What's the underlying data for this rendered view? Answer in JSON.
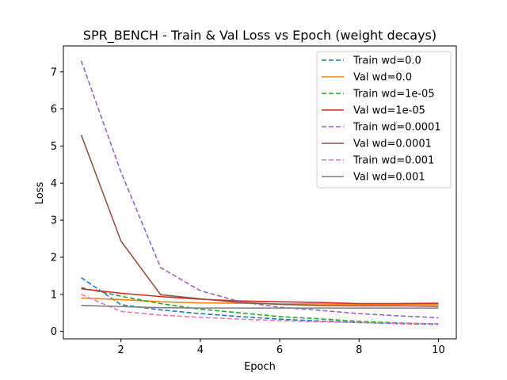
{
  "chart_data": {
    "type": "line",
    "title": "SPR_BENCH - Train & Val Loss vs Epoch (weight decays)",
    "xlabel": "Epoch",
    "ylabel": "Loss",
    "xlim": [
      0.55,
      10.45
    ],
    "ylim": [
      -0.2,
      7.7
    ],
    "xticks": [
      2,
      4,
      6,
      8,
      10
    ],
    "yticks": [
      0,
      1,
      2,
      3,
      4,
      5,
      6,
      7
    ],
    "grid": false,
    "legend_position": "top-right",
    "x": [
      1,
      2,
      3,
      4,
      5,
      6,
      7,
      8,
      9,
      10
    ],
    "series": [
      {
        "name": "Train wd=0.0",
        "color": "#1f77b4",
        "dash": "dashed",
        "values": [
          1.45,
          0.72,
          0.58,
          0.48,
          0.4,
          0.33,
          0.28,
          0.24,
          0.21,
          0.19
        ]
      },
      {
        "name": "Val wd=0.0",
        "color": "#ff7f0e",
        "dash": "solid",
        "values": [
          0.9,
          0.86,
          0.8,
          0.77,
          0.76,
          0.74,
          0.74,
          0.73,
          0.73,
          0.73
        ]
      },
      {
        "name": "Train wd=1e-05",
        "color": "#2ca02c",
        "dash": "dashed",
        "values": [
          1.18,
          0.95,
          0.75,
          0.6,
          0.5,
          0.4,
          0.34,
          0.27,
          0.23,
          0.2
        ]
      },
      {
        "name": "Val wd=1e-05",
        "color": "#d62728",
        "dash": "solid",
        "values": [
          1.15,
          1.03,
          0.94,
          0.87,
          0.82,
          0.8,
          0.78,
          0.75,
          0.75,
          0.76
        ]
      },
      {
        "name": "Train wd=0.0001",
        "color": "#9467bd",
        "dash": "dashed",
        "values": [
          7.3,
          4.3,
          1.72,
          1.1,
          0.8,
          0.65,
          0.57,
          0.48,
          0.42,
          0.37
        ]
      },
      {
        "name": "Val wd=0.0001",
        "color": "#8c564b",
        "dash": "solid",
        "values": [
          5.3,
          2.44,
          0.99,
          0.88,
          0.78,
          0.73,
          0.7,
          0.69,
          0.69,
          0.68
        ]
      },
      {
        "name": "Train wd=0.001",
        "color": "#e377c2",
        "dash": "dashed",
        "values": [
          1.0,
          0.54,
          0.44,
          0.38,
          0.33,
          0.29,
          0.26,
          0.24,
          0.22,
          0.21
        ]
      },
      {
        "name": "Val wd=0.001",
        "color": "#7f7f7f",
        "dash": "solid",
        "values": [
          0.7,
          0.67,
          0.64,
          0.63,
          0.63,
          0.63,
          0.63,
          0.63,
          0.63,
          0.63
        ]
      }
    ]
  }
}
